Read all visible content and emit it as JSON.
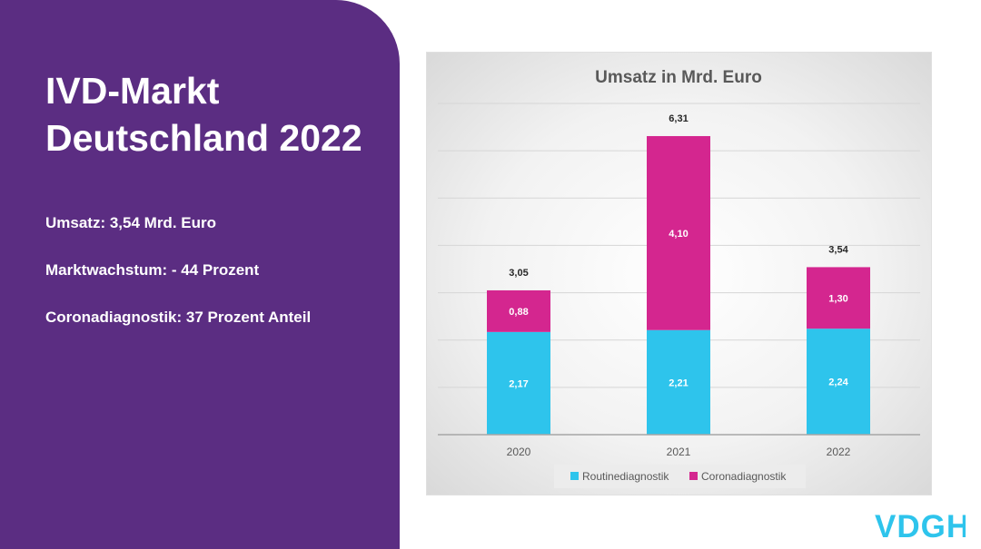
{
  "slide": {
    "title_line1": "IVD-Markt",
    "title_line2": "Deutschland 2022",
    "facts": [
      "Umsatz: 3,54 Mrd. Euro",
      "Marktwachstum: - 44 Prozent",
      "Coronadiagnostik: 37 Prozent Anteil"
    ],
    "logo_text": "VDGH"
  },
  "colors": {
    "panel": "#5b2d82",
    "routine": "#2ec4ec",
    "corona": "#d4268f",
    "logo": "#2ec4ec"
  },
  "chart_data": {
    "type": "bar",
    "stacked": true,
    "title": "Umsatz in Mrd. Euro",
    "categories": [
      "2020",
      "2021",
      "2022"
    ],
    "series": [
      {
        "name": "Routinediagnostik",
        "values": [
          2.17,
          2.21,
          2.24
        ],
        "labels": [
          "2,17",
          "2,21",
          "2,24"
        ]
      },
      {
        "name": "Coronadiagnostik",
        "values": [
          0.88,
          4.1,
          1.3
        ],
        "labels": [
          "0,88",
          "4,10",
          "1,30"
        ]
      }
    ],
    "totals": [
      3.05,
      6.31,
      3.54
    ],
    "total_labels": [
      "3,05",
      "6,31",
      "3,54"
    ],
    "ylim": [
      0,
      7
    ],
    "gridlines": true,
    "y_tick_labels_visible": false,
    "legend": "bottom"
  }
}
